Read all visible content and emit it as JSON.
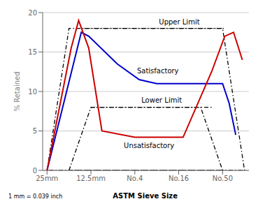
{
  "chart_data": {
    "type": "line",
    "ylabel": "% Retained",
    "xlabel": "ASTM Sieve Size",
    "footnote": "1 mm = 0.039 inch",
    "xlim": [
      -0.1,
      4.6
    ],
    "xticks": [
      {
        "value": 0,
        "label": "25mm"
      },
      {
        "value": 1,
        "label": "12.5mm"
      },
      {
        "value": 2,
        "label": "No.4"
      },
      {
        "value": 3,
        "label": "No.16"
      },
      {
        "value": 4,
        "label": "No.50"
      }
    ],
    "ylim": [
      0,
      20
    ],
    "yticks": [
      0,
      5,
      10,
      15,
      20
    ],
    "grid": "y",
    "series": [
      {
        "x": [
          0.85,
          4.05
        ],
        "values": [
          18,
          18
        ],
        "color": "#000000",
        "line_style": "dashdot"
      },
      {
        "x": [
          1.0,
          3.75
        ],
        "values": [
          8,
          8
        ],
        "color": "#000000",
        "line_style": "dashdot"
      },
      {
        "x": [
          0.5,
          1.0,
          3.5,
          4.0,
          0.5
        ],
        "values": [
          0,
          8,
          8,
          0,
          0
        ],
        "color": "#000000",
        "line_style": "dashdot"
      },
      {
        "x": [
          0.0,
          0.5,
          4.0,
          4.5,
          0.0
        ],
        "values": [
          0,
          18,
          18,
          0,
          0
        ],
        "color": "#000000",
        "line_style": "dashdot"
      },
      {
        "x": [
          0,
          0.78,
          0.95,
          1.6,
          2.1,
          2.5,
          3.5,
          4.0,
          4.15,
          4.3
        ],
        "values": [
          0,
          17.5,
          17.0,
          13.5,
          11.5,
          11.0,
          11.0,
          11.0,
          8.5,
          4.5
        ],
        "color": "#0000cc",
        "line_style": "solid"
      },
      {
        "x": [
          0,
          0.55,
          0.72,
          0.95,
          1.25,
          2.0,
          2.5,
          3.1,
          3.75,
          4.05,
          4.25,
          4.45
        ],
        "values": [
          0,
          15.5,
          19.0,
          15.5,
          5.0,
          4.2,
          4.2,
          4.2,
          12.5,
          17.0,
          17.5,
          14.0
        ],
        "color": "#cc0000",
        "line_style": "solid"
      }
    ],
    "annotations": [
      {
        "text": "Satisfactory",
        "x": 2.05,
        "y": 12.3
      },
      {
        "text": "Unsatisfactory",
        "x": 1.75,
        "y": 2.8
      },
      {
        "text": "Upper Limit",
        "x": 2.55,
        "y": 18.5
      },
      {
        "text": "Lower Limit",
        "x": 2.15,
        "y": 8.6
      }
    ]
  }
}
